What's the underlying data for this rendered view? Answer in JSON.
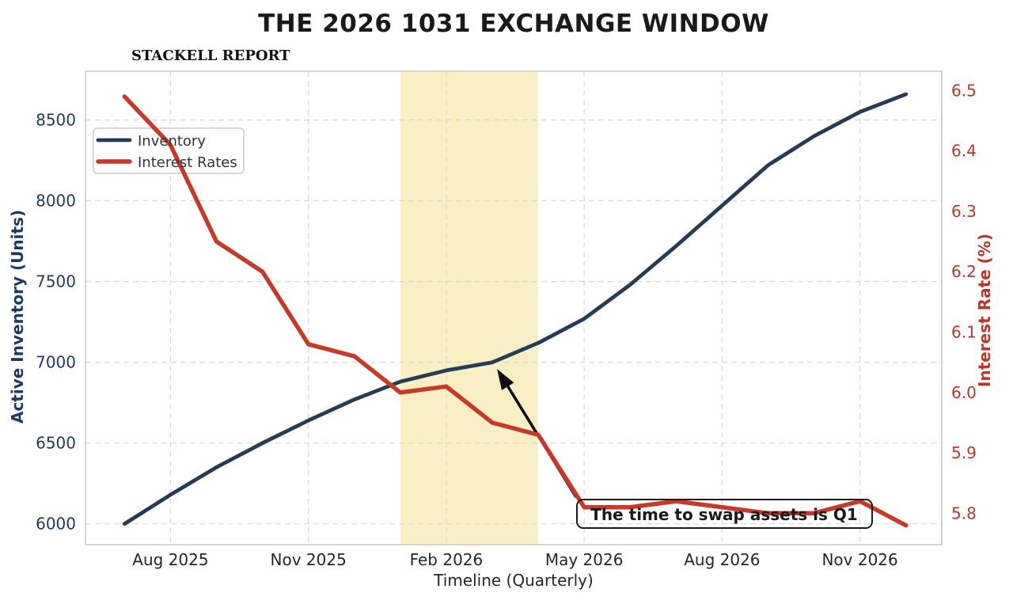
{
  "title": "THE 2026 1031 EXCHANGE WINDOW",
  "subtitle": "STACKELL REPORT",
  "colors": {
    "inventory": "#273c54",
    "rates": "#c43b2b",
    "left_axis_text": "#1e3a5f",
    "right_axis_text": "#b5392b",
    "band": "#f9efc4",
    "grid": "#d9d9d9",
    "spine": "#c8c8c8",
    "tick_text": "#262626",
    "annotation_ink": "#1a1a1a"
  },
  "legend": {
    "items": [
      {
        "label": "Inventory"
      },
      {
        "label": "Interest Rates"
      }
    ]
  },
  "annotation": {
    "text": "The time to swap assets is Q1",
    "arrow_target_month": "Mar 2026"
  },
  "chart_data": {
    "type": "line",
    "x": [
      "Jul 2025",
      "Aug 2025",
      "Sep 2025",
      "Oct 2025",
      "Nov 2025",
      "Dec 2025",
      "Jan 2026",
      "Feb 2026",
      "Mar 2026",
      "Apr 2026",
      "May 2026",
      "Jun 2026",
      "Jul 2026",
      "Aug 2026",
      "Sep 2026",
      "Oct 2026",
      "Nov 2026",
      "Dec 2026"
    ],
    "series": [
      {
        "name": "Inventory",
        "axis": "left",
        "color": "#273c54",
        "width": 4.8,
        "values": [
          6000,
          6180,
          6350,
          6500,
          6640,
          6770,
          6880,
          6950,
          7000,
          7120,
          7270,
          7480,
          7720,
          7970,
          8220,
          8400,
          8550,
          8660
        ]
      },
      {
        "name": "Interest Rates",
        "axis": "right",
        "color": "#c43b2b",
        "width": 5.5,
        "values": [
          6.49,
          6.41,
          6.25,
          6.2,
          6.08,
          6.06,
          6.0,
          6.01,
          5.95,
          5.93,
          5.81,
          5.81,
          5.82,
          5.81,
          5.8,
          5.8,
          5.82,
          5.78
        ]
      }
    ],
    "title": "THE 2026 1031 EXCHANGE WINDOW",
    "xlabel": "Timeline (Quarterly)",
    "ylabel_left": "Active Inventory (Units)",
    "ylabel_right": "Interest Rate (%)",
    "x_tick_labels": [
      "Aug 2025",
      "Nov 2025",
      "Feb 2026",
      "May 2026",
      "Aug 2026",
      "Nov 2026"
    ],
    "x_tick_month_indices": [
      1,
      4,
      7,
      10,
      13,
      16
    ],
    "y_left_ticks": [
      6000,
      6500,
      7000,
      7500,
      8000,
      8500
    ],
    "y_right_ticks": [
      5.8,
      5.9,
      6.0,
      6.1,
      6.2,
      6.3,
      6.4,
      6.5
    ],
    "ylim_left": [
      5871,
      8802
    ],
    "ylim_right": [
      5.748,
      6.532
    ],
    "xlim_months": [
      -0.85,
      17.78
    ],
    "highlight_band": {
      "from_month_index": 6,
      "to_month_index": 9
    },
    "grid": true,
    "legend_position": "upper left"
  }
}
